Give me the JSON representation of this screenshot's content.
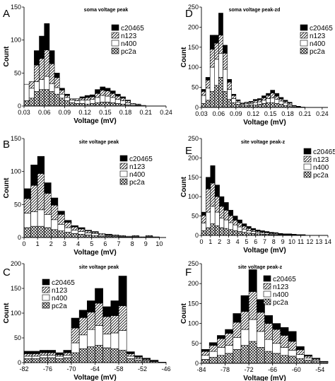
{
  "chart_data": [
    {
      "panel": "A",
      "type": "bar",
      "title": "soma voltage peak",
      "xlabel": "Voltage (mV)",
      "ylabel": "Count",
      "xlim": [
        0.03,
        0.24
      ],
      "ylim": [
        0,
        150
      ],
      "xticks": [
        "0.03",
        "0.06",
        "0.09",
        "0.12",
        "0.15",
        "0.18",
        "0.21",
        "0.24"
      ],
      "yticks": [
        "0",
        "50",
        "100",
        "150"
      ],
      "binwidth": 0.0075,
      "x": [
        0.03,
        0.0375,
        0.045,
        0.0525,
        0.06,
        0.0675,
        0.075,
        0.0825,
        0.09,
        0.0975,
        0.105,
        0.1125,
        0.12,
        0.1275,
        0.135,
        0.1425,
        0.15,
        0.1575,
        0.165,
        0.1725,
        0.18,
        0.1875,
        0.195,
        0.2025,
        0.21
      ],
      "series": [
        {
          "name": "pc2a",
          "values": [
            8,
            12,
            22,
            25,
            25,
            22,
            18,
            12,
            8,
            5,
            4,
            4,
            3,
            4,
            5,
            6,
            6,
            5,
            4,
            3,
            2,
            1,
            1,
            0,
            0
          ]
        },
        {
          "name": "n400",
          "values": [
            25,
            15,
            15,
            15,
            20,
            12,
            10,
            6,
            5,
            4,
            4,
            5,
            6,
            6,
            8,
            10,
            9,
            8,
            6,
            5,
            3,
            2,
            1,
            1,
            0
          ]
        },
        {
          "name": "n123",
          "values": [
            0,
            10,
            25,
            32,
            40,
            30,
            15,
            6,
            3,
            2,
            3,
            3,
            4,
            4,
            6,
            8,
            8,
            6,
            5,
            4,
            3,
            1,
            1,
            0,
            0
          ]
        },
        {
          "name": "c20465",
          "values": [
            0,
            0,
            22,
            34,
            40,
            20,
            7,
            3,
            2,
            0,
            0,
            2,
            3,
            3,
            6,
            5,
            4,
            4,
            3,
            2,
            1,
            0,
            0,
            0,
            0
          ]
        }
      ],
      "legend": [
        "c20465",
        "n123",
        "n400",
        "pc2a"
      ]
    },
    {
      "panel": "B",
      "type": "bar",
      "title": "site voltage peak",
      "xlabel": "Voltage (mV)",
      "ylabel": "Count",
      "xlim": [
        0,
        10.5
      ],
      "ylim": [
        0,
        150
      ],
      "xticks": [
        "0",
        "1",
        "2",
        "3",
        "4",
        "5",
        "6",
        "7",
        "8",
        "9",
        "10"
      ],
      "yticks": [
        "0",
        "50",
        "100",
        "150"
      ],
      "binwidth": 0.5,
      "x": [
        0,
        0.5,
        1,
        1.5,
        2,
        2.5,
        3,
        3.5,
        4,
        4.5,
        5,
        5.5,
        6,
        6.5,
        7,
        7.5,
        8,
        8.5,
        9,
        9.5
      ],
      "series": [
        {
          "name": "pc2a",
          "values": [
            15,
            17,
            17,
            15,
            12,
            10,
            8,
            6,
            5,
            4,
            3,
            2,
            2,
            2,
            1,
            1,
            1,
            1,
            1,
            1
          ]
        },
        {
          "name": "n400",
          "values": [
            22,
            22,
            25,
            20,
            15,
            10,
            7,
            5,
            4,
            3,
            3,
            2,
            1,
            1,
            1,
            1,
            1,
            0,
            1,
            0
          ]
        },
        {
          "name": "n123",
          "values": [
            22,
            40,
            55,
            32,
            22,
            15,
            8,
            5,
            4,
            3,
            2,
            2,
            1,
            1,
            1,
            0,
            1,
            0,
            1,
            0
          ]
        },
        {
          "name": "c20465",
          "values": [
            15,
            31,
            26,
            16,
            11,
            5,
            3,
            2,
            2,
            1,
            1,
            0,
            1,
            0,
            0,
            0,
            0,
            0,
            0,
            0
          ]
        }
      ],
      "legend": [
        "c20465",
        "n123",
        "n400",
        "pc2a"
      ]
    },
    {
      "panel": "C",
      "type": "bar",
      "title": "site voltage peak",
      "xlabel": "Voltage (mV)",
      "ylabel": "Count",
      "xlim": [
        -82,
        -46
      ],
      "ylim": [
        0,
        200
      ],
      "xticks": [
        "-82",
        "-76",
        "-70",
        "-64",
        "-58",
        "-52",
        "-46"
      ],
      "yticks": [
        "0",
        "50",
        "100",
        "150",
        "200"
      ],
      "binwidth": 2,
      "x": [
        -82,
        -80,
        -78,
        -76,
        -74,
        -72,
        -70,
        -68,
        -66,
        -64,
        -62,
        -60,
        -58,
        -56,
        -54,
        -52,
        -50,
        -48
      ],
      "series": [
        {
          "name": "pc2a",
          "values": [
            8,
            8,
            10,
            10,
            8,
            10,
            20,
            28,
            32,
            35,
            30,
            28,
            25,
            8,
            5,
            3,
            2,
            1
          ]
        },
        {
          "name": "n400",
          "values": [
            5,
            5,
            5,
            5,
            5,
            5,
            20,
            28,
            35,
            40,
            28,
            32,
            40,
            5,
            3,
            2,
            1,
            0
          ]
        },
        {
          "name": "n123",
          "values": [
            5,
            5,
            5,
            5,
            3,
            5,
            30,
            35,
            35,
            45,
            35,
            35,
            50,
            5,
            3,
            2,
            1,
            0
          ]
        },
        {
          "name": "c20465",
          "values": [
            5,
            5,
            5,
            5,
            4,
            5,
            20,
            15,
            23,
            30,
            20,
            30,
            60,
            4,
            3,
            2,
            1,
            0
          ]
        }
      ],
      "legend": [
        "c20465",
        "n123",
        "n400",
        "pc2a"
      ]
    },
    {
      "panel": "D",
      "type": "bar",
      "title": "soma voltage peak-zd",
      "xlabel": "Voltage (mV)",
      "ylabel": "Count",
      "xlim": [
        0.03,
        0.25
      ],
      "ylim": [
        0,
        250
      ],
      "xticks": [
        "0.03",
        "0.06",
        "0.09",
        "0.12",
        "0.15",
        "0.18",
        "0.21",
        "0.24"
      ],
      "yticks": [
        "0",
        "50",
        "100",
        "150",
        "200",
        "250"
      ],
      "binwidth": 0.0075,
      "x": [
        0.03,
        0.0375,
        0.045,
        0.0525,
        0.06,
        0.0675,
        0.075,
        0.0825,
        0.09,
        0.0975,
        0.105,
        0.1125,
        0.12,
        0.1275,
        0.135,
        0.1425,
        0.15,
        0.1575,
        0.165,
        0.1725,
        0.18,
        0.1875,
        0.195,
        0.2025,
        0.21
      ],
      "series": [
        {
          "name": "pc2a",
          "values": [
            10,
            18,
            40,
            55,
            75,
            40,
            20,
            12,
            8,
            5,
            5,
            6,
            6,
            8,
            10,
            12,
            12,
            10,
            8,
            5,
            4,
            2,
            1,
            0,
            0
          ]
        },
        {
          "name": "n400",
          "values": [
            20,
            30,
            60,
            65,
            60,
            55,
            25,
            10,
            5,
            3,
            4,
            4,
            6,
            6,
            8,
            10,
            12,
            10,
            8,
            6,
            4,
            2,
            1,
            1,
            0
          ]
        },
        {
          "name": "n123",
          "values": [
            10,
            20,
            45,
            40,
            45,
            40,
            18,
            8,
            4,
            2,
            3,
            3,
            5,
            5,
            6,
            8,
            12,
            8,
            5,
            4,
            3,
            1,
            1,
            0,
            0
          ]
        },
        {
          "name": "c20465",
          "values": [
            5,
            7,
            35,
            20,
            55,
            20,
            7,
            3,
            2,
            1,
            1,
            2,
            3,
            3,
            5,
            5,
            7,
            7,
            4,
            3,
            2,
            0,
            0,
            0,
            0
          ]
        }
      ],
      "legend": [
        "c20465",
        "n123",
        "n400",
        "pc2a"
      ]
    },
    {
      "panel": "E",
      "type": "bar",
      "title": "site voltage peak-z",
      "xlabel": "Voltage (mV)",
      "ylabel": "Count",
      "xlim": [
        0,
        14
      ],
      "ylim": [
        0,
        250
      ],
      "xticks": [
        "0",
        "1",
        "2",
        "3",
        "4",
        "5",
        "6",
        "7",
        "8",
        "9",
        "10",
        "11",
        "12",
        "13",
        "14"
      ],
      "yticks": [
        "0",
        "50",
        "100",
        "150",
        "200",
        "250"
      ],
      "binwidth": 0.5,
      "x": [
        0,
        0.5,
        1,
        1.5,
        2,
        2.5,
        3,
        3.5,
        4,
        4.5,
        5,
        5.5,
        6,
        6.5,
        7,
        7.5,
        8,
        8.5,
        9,
        9.5,
        10,
        10.5,
        11,
        11.5,
        12,
        12.5,
        13,
        13.5
      ],
      "series": [
        {
          "name": "pc2a",
          "values": [
            12,
            20,
            30,
            25,
            20,
            18,
            15,
            12,
            10,
            8,
            6,
            5,
            4,
            3,
            3,
            2,
            2,
            2,
            1,
            1,
            1,
            1,
            1,
            0,
            0,
            0,
            0,
            0
          ]
        },
        {
          "name": "n400",
          "values": [
            20,
            40,
            45,
            35,
            25,
            22,
            18,
            15,
            12,
            8,
            6,
            5,
            4,
            3,
            3,
            2,
            2,
            1,
            1,
            1,
            1,
            0,
            1,
            0,
            0,
            0,
            0,
            0
          ]
        },
        {
          "name": "n123",
          "values": [
            20,
            60,
            60,
            40,
            30,
            25,
            18,
            12,
            10,
            8,
            6,
            4,
            3,
            3,
            2,
            2,
            2,
            1,
            1,
            1,
            0,
            1,
            0,
            0,
            0,
            0,
            0,
            0
          ]
        },
        {
          "name": "c20465",
          "values": [
            8,
            30,
            45,
            30,
            25,
            20,
            14,
            11,
            8,
            6,
            5,
            4,
            3,
            3,
            2,
            2,
            1,
            1,
            1,
            1,
            1,
            0,
            0,
            0,
            0,
            0,
            0,
            0
          ]
        }
      ],
      "legend": [
        "c20465",
        "n123",
        "n400",
        "pc2a"
      ]
    },
    {
      "panel": "F",
      "type": "bar",
      "title": "site voltage peak-z",
      "xlabel": "Voltage (mV)",
      "ylabel": "Count",
      "xlim": [
        -84,
        -52
      ],
      "ylim": [
        0,
        250
      ],
      "xticks": [
        "-84",
        "-78",
        "-72",
        "-66",
        "-60",
        "-54"
      ],
      "yticks": [
        "0",
        "50",
        "100",
        "150",
        "200",
        "250"
      ],
      "binwidth": 2,
      "x": [
        -84,
        -82,
        -80,
        -78,
        -76,
        -74,
        -72,
        -70,
        -68,
        -66,
        -64,
        -62,
        -60,
        -58,
        -56,
        -54
      ],
      "series": [
        {
          "name": "pc2a",
          "values": [
            10,
            15,
            20,
            25,
            35,
            45,
            55,
            40,
            30,
            25,
            20,
            18,
            12,
            8,
            5,
            2
          ]
        },
        {
          "name": "n400",
          "values": [
            10,
            15,
            20,
            20,
            30,
            40,
            55,
            40,
            30,
            25,
            20,
            15,
            10,
            5,
            3,
            2
          ]
        },
        {
          "name": "n123",
          "values": [
            10,
            15,
            22,
            30,
            38,
            45,
            70,
            48,
            40,
            35,
            30,
            22,
            12,
            5,
            3,
            1
          ]
        },
        {
          "name": "c20465",
          "values": [
            5,
            7,
            8,
            10,
            22,
            40,
            55,
            32,
            20,
            15,
            20,
            25,
            8,
            3,
            2,
            0
          ]
        }
      ],
      "legend": [
        "c20465",
        "n123",
        "n400",
        "pc2a"
      ]
    }
  ]
}
